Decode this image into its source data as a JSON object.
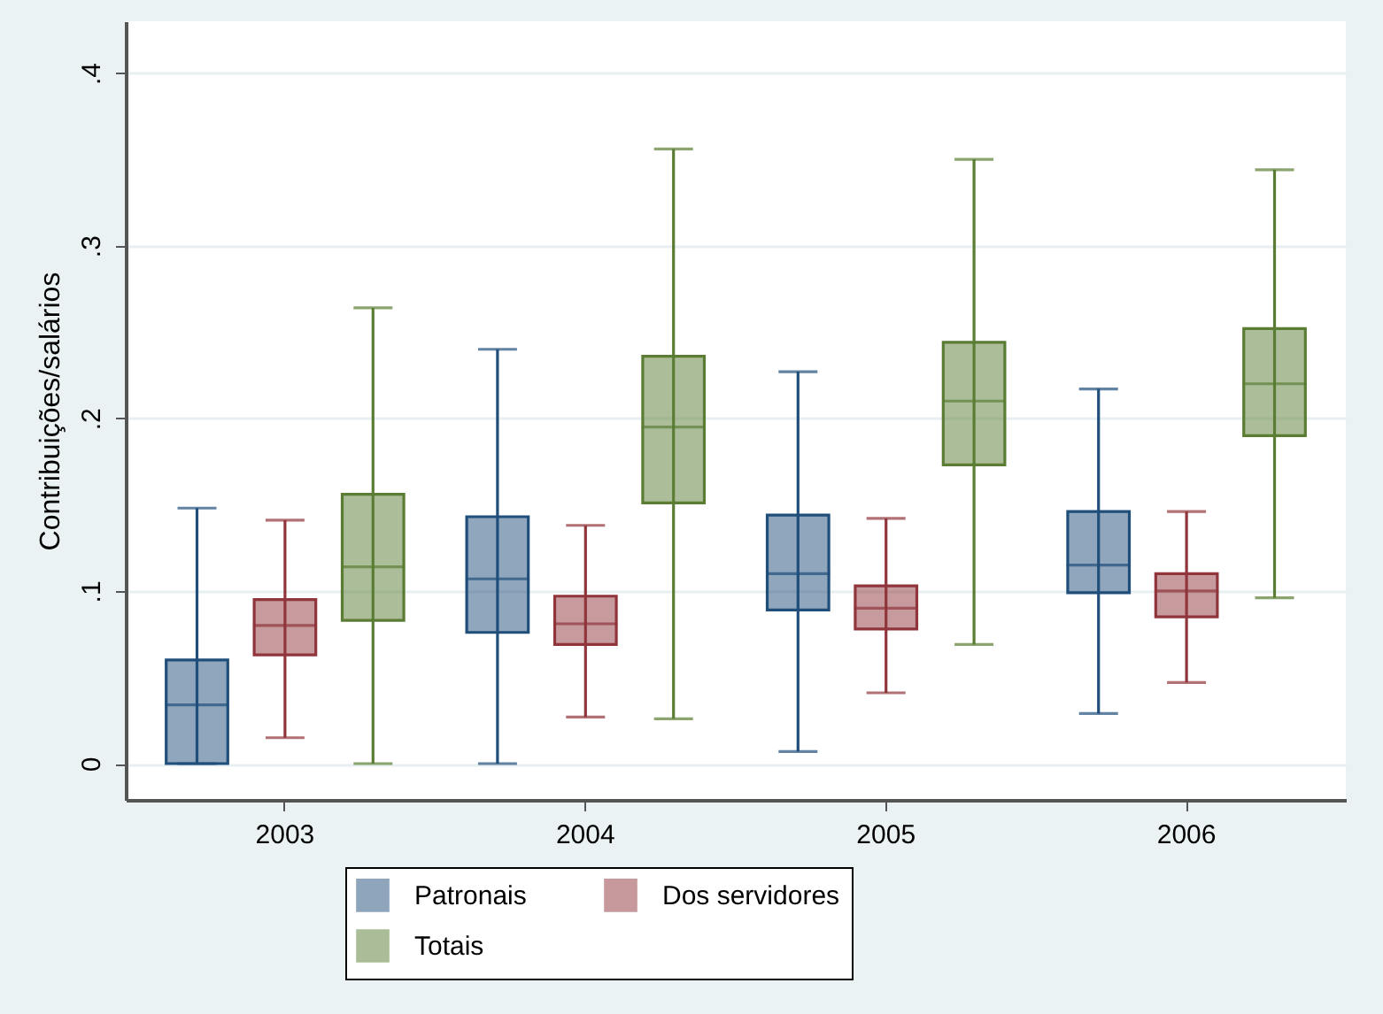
{
  "chart_data": {
    "type": "box",
    "ylabel": "Contribuições/salários",
    "categories": [
      "2003",
      "2004",
      "2005",
      "2006"
    ],
    "ylim": [
      -0.021,
      0.43
    ],
    "yticks": [
      0,
      {
        "value": 0.1,
        "label": ".1"
      },
      {
        "value": 0.2,
        "label": ".2"
      },
      {
        "value": 0.3,
        "label": ".3"
      },
      {
        "value": 0.4,
        "label": ".4"
      }
    ],
    "grid": "y",
    "legend": "bottom",
    "series": [
      {
        "name": "Patronais",
        "color": "#1f4e7a",
        "boxes": [
          {
            "low": 0,
            "q1": 0,
            "median": 0.034,
            "q3": 0.06,
            "high": 0.148
          },
          {
            "low": 0,
            "q1": 0.076,
            "median": 0.107,
            "q3": 0.143,
            "high": 0.24
          },
          {
            "low": 0.007,
            "q1": 0.089,
            "median": 0.11,
            "q3": 0.144,
            "high": 0.227
          },
          {
            "low": 0.029,
            "q1": 0.099,
            "median": 0.115,
            "q3": 0.146,
            "high": 0.217
          }
        ]
      },
      {
        "name": "Dos servidores",
        "color": "#90353b",
        "boxes": [
          {
            "low": 0.015,
            "q1": 0.063,
            "median": 0.08,
            "q3": 0.095,
            "high": 0.141
          },
          {
            "low": 0.027,
            "q1": 0.069,
            "median": 0.081,
            "q3": 0.097,
            "high": 0.138
          },
          {
            "low": 0.041,
            "q1": 0.078,
            "median": 0.09,
            "q3": 0.103,
            "high": 0.142
          },
          {
            "low": 0.047,
            "q1": 0.085,
            "median": 0.1,
            "q3": 0.11,
            "high": 0.146
          }
        ]
      },
      {
        "name": "Totais",
        "color": "#5a7d33",
        "boxes": [
          {
            "low": 0,
            "q1": 0.083,
            "median": 0.114,
            "q3": 0.156,
            "high": 0.264
          },
          {
            "low": 0.026,
            "q1": 0.151,
            "median": 0.195,
            "q3": 0.236,
            "high": 0.356
          },
          {
            "low": 0.069,
            "q1": 0.173,
            "median": 0.21,
            "q3": 0.244,
            "high": 0.35
          },
          {
            "low": 0.096,
            "q1": 0.19,
            "median": 0.22,
            "q3": 0.252,
            "high": 0.344
          }
        ]
      }
    ]
  }
}
